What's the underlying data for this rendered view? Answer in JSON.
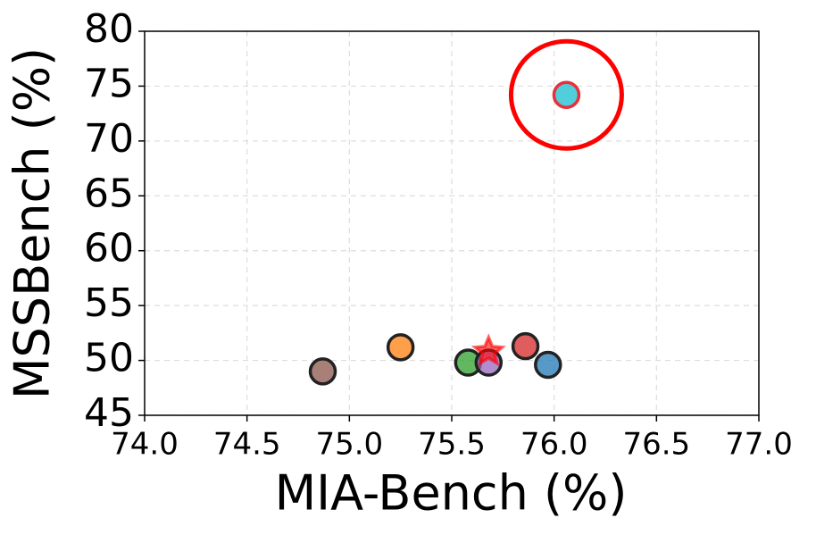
{
  "chart_data": {
    "type": "scatter",
    "xlabel": "MIA-Bench (%)",
    "ylabel": "MSSBench (%)",
    "x": [
      74.87,
      75.25,
      75.58,
      75.68,
      75.86,
      75.97,
      75.68,
      76.06
    ],
    "values": [
      49.0,
      51.2,
      49.8,
      49.8,
      51.3,
      49.6,
      50.8,
      74.2
    ],
    "colors": [
      "#8c564b",
      "#ff7f0e",
      "#2ca02c",
      "#9467bd",
      "#d62728",
      "#1f77b4",
      "#ff0000",
      "#17becf"
    ],
    "edgecolors": [
      "#222222",
      "#222222",
      "#222222",
      "#222222",
      "#222222",
      "#222222",
      "#ff0000",
      "#e8303a"
    ],
    "markers": [
      "circle",
      "circle",
      "circle",
      "circle",
      "circle",
      "circle",
      "star",
      "circle"
    ],
    "xlim": [
      74,
      77
    ],
    "ylim": [
      45,
      80
    ],
    "xticks": [
      {
        "value": 74,
        "label": "74.0"
      },
      {
        "value": 74.5,
        "label": "74.5"
      },
      {
        "value": 75,
        "label": "75.0"
      },
      {
        "value": 75.5,
        "label": "75.5"
      },
      {
        "value": 76,
        "label": "76.0"
      },
      {
        "value": 76.5,
        "label": "76.5"
      },
      {
        "value": 77,
        "label": "77.0"
      }
    ],
    "yticks": [
      45,
      50,
      55,
      60,
      65,
      70,
      75,
      80
    ],
    "grid": true,
    "highlight_color": "#ff0000"
  }
}
